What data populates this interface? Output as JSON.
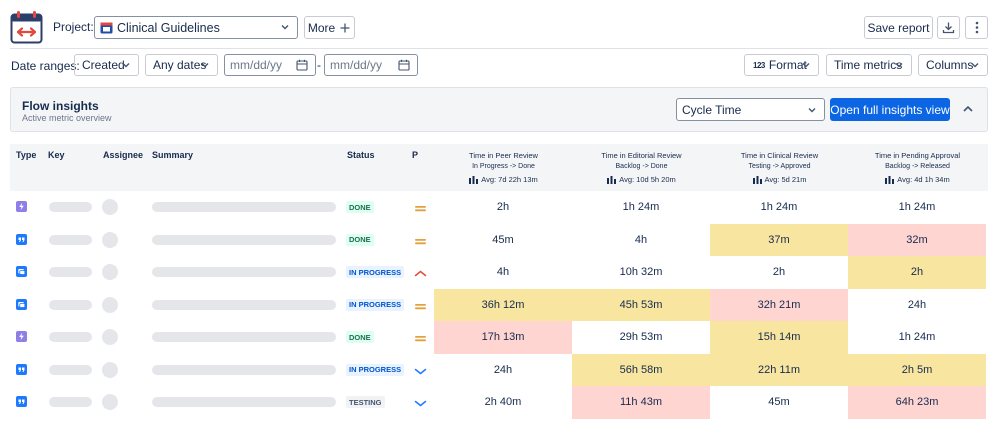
{
  "header": {
    "project_label": "Project:",
    "project_value": "Clinical Guidelines",
    "more_label": "More",
    "save_label": "Save report"
  },
  "filters": {
    "date_ranges_label": "Date ranges:",
    "created_label": "Created",
    "any_dates_label": "Any dates",
    "date_from_placeholder": "mm/dd/yy",
    "date_to_placeholder": "mm/dd/yy",
    "separator": "-",
    "format_label": "Format",
    "format_icon_text": "123",
    "time_metrics_label": "Time metrics",
    "columns_label": "Columns"
  },
  "insights": {
    "title": "Flow insights",
    "subtitle": "Active metric overview",
    "metric_value": "Cycle Time",
    "open_label": "Open full insights view"
  },
  "table": {
    "columns": {
      "type": "Type",
      "key": "Key",
      "assignee": "Assignee",
      "summary": "Summary",
      "status": "Status",
      "priority": "P"
    },
    "metrics": [
      {
        "title": "Time in Peer Review",
        "transition": "In Progress -> Done",
        "avg": "Avg: 7d 22h 13m"
      },
      {
        "title": "Time in Editorial Review",
        "transition": "Backlog -> Done",
        "avg": "Avg: 10d 5h 20m"
      },
      {
        "title": "Time in Clinical Review",
        "transition": "Testing -> Approved",
        "avg": "Avg: 5d 21m"
      },
      {
        "title": "Time in Pending Approval",
        "transition": "Backlog -> Released",
        "avg": "Avg: 4d 1h 34m"
      }
    ],
    "rows": [
      {
        "type_icon": "epic-icon",
        "status": "DONE",
        "priority": "medium-priority-icon",
        "values": [
          "2h",
          "1h 24m",
          "1h 24m",
          "1h 24m"
        ],
        "levels": [
          "none",
          "none",
          "none",
          "none"
        ]
      },
      {
        "type_icon": "quote-icon",
        "status": "DONE",
        "priority": "medium-priority-icon",
        "values": [
          "45m",
          "4h",
          "37m",
          "32m"
        ],
        "levels": [
          "none",
          "none",
          "warning",
          "critical"
        ]
      },
      {
        "type_icon": "story-icon",
        "status": "IN PROGRESS",
        "priority": "high-priority-icon",
        "values": [
          "4h",
          "10h 32m",
          "2h",
          "2h"
        ],
        "levels": [
          "none",
          "none",
          "none",
          "warning"
        ]
      },
      {
        "type_icon": "story-icon",
        "status": "IN PROGRESS",
        "priority": "medium-priority-icon",
        "values": [
          "36h 12m",
          "45h 53m",
          "32h 21m",
          "24h"
        ],
        "levels": [
          "warning",
          "warning",
          "critical",
          "none"
        ]
      },
      {
        "type_icon": "epic-icon",
        "status": "DONE",
        "priority": "medium-priority-icon",
        "values": [
          "17h 13m",
          "29h 53m",
          "15h 14m",
          "1h 24m"
        ],
        "levels": [
          "critical",
          "none",
          "warning",
          "none"
        ]
      },
      {
        "type_icon": "quote-icon",
        "status": "IN PROGRESS",
        "priority": "low-priority-icon",
        "values": [
          "24h",
          "56h 58m",
          "22h 11m",
          "2h 5m"
        ],
        "levels": [
          "none",
          "warning",
          "warning",
          "warning"
        ]
      },
      {
        "type_icon": "quote-icon",
        "status": "TESTING",
        "priority": "low-priority-icon",
        "values": [
          "2h 40m",
          "11h 43m",
          "45m",
          "64h 23m"
        ],
        "levels": [
          "none",
          "critical",
          "none",
          "critical"
        ]
      }
    ]
  },
  "colors": {
    "primary": "#0c66e4",
    "warning_cell": "#f8e6a0",
    "critical_cell": "#ffd5d2",
    "epic": "#8f7ee7",
    "story": "#1d7afc"
  }
}
